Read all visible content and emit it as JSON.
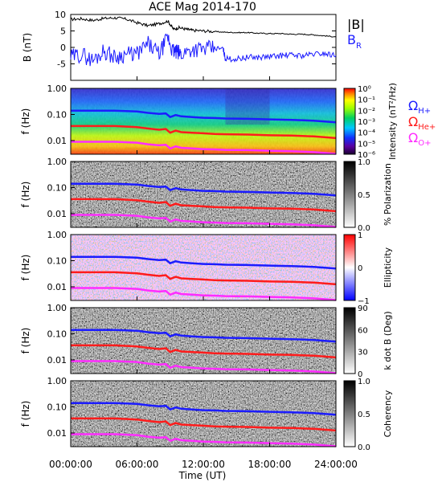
{
  "chart_data": {
    "type": "line",
    "title": "ACE Mag 2014-170",
    "xlabel": "Time (UT)",
    "x_ticks": [
      "00:00:00",
      "06:00:00",
      "12:00:00",
      "18:00:00",
      "24:00:00"
    ],
    "xlim_hours": [
      0,
      24
    ],
    "panels": [
      {
        "id": "field",
        "ylabel": "B (nT)",
        "ylim": [
          -10,
          10
        ],
        "y_ticks": [
          "10",
          "5",
          "0",
          "-5"
        ],
        "legend": [
          {
            "name": "|B|",
            "color": "#000000"
          },
          {
            "name": "B",
            "sub": "R",
            "color": "#1c1cff"
          }
        ],
        "series": [
          {
            "name": "|B|",
            "color": "#000000",
            "x": [
              0,
              1,
              2,
              3,
              4,
              5,
              6,
              7,
              8,
              8.8,
              9.3,
              9.8,
              10.5,
              11,
              12,
              13,
              14,
              15,
              16,
              17,
              18,
              19,
              20,
              21,
              22,
              23,
              24
            ],
            "y": [
              8.5,
              8.7,
              8.2,
              8.8,
              9.0,
              8.6,
              7.5,
              6.6,
              7.2,
              8.0,
              5.5,
              6.0,
              5.5,
              5.2,
              5.0,
              4.8,
              4.6,
              4.5,
              4.5,
              4.3,
              4.2,
              4.2,
              4.0,
              4.0,
              3.8,
              3.5,
              3.2
            ]
          },
          {
            "name": "BR",
            "color": "#1c1cff",
            "x": [
              0,
              1,
              2,
              3,
              4,
              5,
              6,
              7,
              8,
              8.8,
              9.2,
              9.6,
              10,
              11,
              12,
              13,
              13.8,
              14,
              15,
              16,
              17,
              18,
              19,
              20,
              21,
              22,
              23,
              24
            ],
            "y": [
              -3,
              -2,
              -4,
              -1,
              -3,
              -2,
              -2,
              1,
              -2,
              3,
              -1,
              -1.5,
              -2,
              -0.5,
              -0.5,
              -0.3,
              -0.5,
              -3.5,
              -3.5,
              -3.0,
              -3.0,
              -2.8,
              -2.5,
              -2.3,
              -2.5,
              -2.0,
              -1.8,
              -2.5
            ]
          }
        ]
      },
      {
        "id": "intensity",
        "ylabel": "f (Hz)",
        "y_ticks": [
          "1.00",
          "0.10",
          "0.01"
        ],
        "ylim": [
          0.003,
          1
        ],
        "colorbar": {
          "label": "Intensity (nT²/Hz)",
          "ticks": [
            "10⁰",
            "10⁻¹",
            "10⁻²",
            "10⁻³",
            "10⁻⁴",
            "10⁻⁵",
            "10⁻⁶"
          ],
          "scale": "rainbow"
        }
      },
      {
        "id": "polarization",
        "ylabel": "f (Hz)",
        "y_ticks": [
          "1.00",
          "0.10",
          "0.01"
        ],
        "ylim": [
          0.003,
          1
        ],
        "colorbar": {
          "label": "% Polarization",
          "ticks": [
            "1.0",
            "0.5",
            "0.0"
          ],
          "scale": "gray"
        }
      },
      {
        "id": "ellipticity",
        "ylabel": "f (Hz)",
        "y_ticks": [
          "1.00",
          "0.10",
          "0.01"
        ],
        "ylim": [
          0.003,
          1
        ],
        "colorbar": {
          "label": "Ellipticity",
          "ticks": [
            "1",
            "0",
            "−1"
          ],
          "scale": "bwr"
        }
      },
      {
        "id": "kdotb",
        "ylabel": "f (Hz)",
        "y_ticks": [
          "1.00",
          "0.10",
          "0.01"
        ],
        "ylim": [
          0.003,
          1
        ],
        "colorbar": {
          "label": "k dot B (Deg)",
          "ticks": [
            "90",
            "60",
            "30",
            "0"
          ],
          "scale": "gray"
        }
      },
      {
        "id": "coherency",
        "ylabel": "f (Hz)",
        "y_ticks": [
          "1.00",
          "0.10",
          "0.01"
        ],
        "ylim": [
          0.003,
          1
        ],
        "colorbar": {
          "label": "Coherency",
          "ticks": [
            "1.0",
            "0.5",
            "0.0"
          ],
          "scale": "gray"
        }
      }
    ],
    "gyrofrequency_lines": {
      "legend": [
        {
          "name": "Ω",
          "sub": "H+",
          "color": "#1c1cff"
        },
        {
          "name": "Ω",
          "sub": "He+",
          "color": "#ff1c1c"
        },
        {
          "name": "Ω",
          "sub": "O+",
          "color": "#ff2cff"
        }
      ],
      "x": [
        0,
        2,
        4,
        6,
        7,
        8,
        8.6,
        9,
        9.5,
        10,
        11,
        12,
        13,
        14,
        16,
        18,
        20,
        22,
        24
      ],
      "H+": [
        0.14,
        0.14,
        0.14,
        0.13,
        0.115,
        0.105,
        0.11,
        0.08,
        0.095,
        0.085,
        0.08,
        0.075,
        0.073,
        0.07,
        0.068,
        0.065,
        0.062,
        0.058,
        0.05
      ],
      "He+": [
        0.036,
        0.036,
        0.036,
        0.033,
        0.029,
        0.026,
        0.028,
        0.02,
        0.024,
        0.021,
        0.02,
        0.019,
        0.018,
        0.0175,
        0.017,
        0.016,
        0.0155,
        0.0145,
        0.0125
      ],
      "O+": [
        0.009,
        0.009,
        0.009,
        0.0083,
        0.0072,
        0.0066,
        0.0069,
        0.005,
        0.006,
        0.0053,
        0.005,
        0.0047,
        0.0046,
        0.0044,
        0.0043,
        0.0041,
        0.0039,
        0.0036,
        0.0031
      ]
    }
  }
}
